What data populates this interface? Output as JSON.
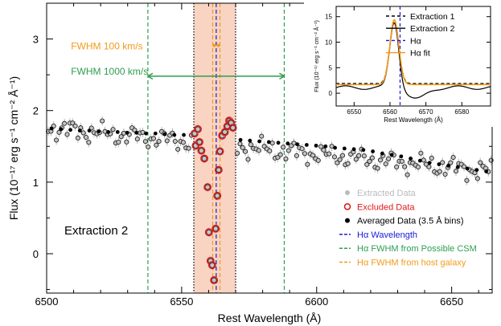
{
  "chart_data": {
    "type": "scatter",
    "main": {
      "xlabel": "Rest Wavelength (Å)",
      "ylabel": "Flux (10⁻¹⁷ erg s⁻¹ cm⁻² Å⁻¹)",
      "xlim": [
        6500,
        6665
      ],
      "ylim": [
        -0.55,
        3.5
      ],
      "xticks": [
        6500,
        6550,
        6600,
        6650
      ],
      "yticks": [
        0,
        1,
        2,
        3
      ],
      "panel_label": "Extraction 2",
      "shaded_region": {
        "x0": 6554.5,
        "x1": 6570,
        "color": "#f7c5ad"
      },
      "vlines": [
        {
          "x": 6537.5,
          "color": "#2e9e4f",
          "style": "dashed"
        },
        {
          "x": 6588.0,
          "color": "#2e9e4f",
          "style": "dashed"
        },
        {
          "x": 6562.8,
          "color": "#1a1ad6",
          "style": "dashed"
        },
        {
          "x": 6561.5,
          "color": "#f39a1a",
          "style": "dashed"
        },
        {
          "x": 6564.2,
          "color": "#f39a1a",
          "style": "dashed"
        },
        {
          "x": 6554.5,
          "color": "#000000",
          "style": "dotted"
        },
        {
          "x": 6570.0,
          "color": "#000000",
          "style": "dotted"
        }
      ],
      "annotations": [
        {
          "text": "FWHM 100 km/s",
          "color": "#f39a1a",
          "x": 6509,
          "y": 2.91,
          "arrow": [
            6561.5,
            6564.2,
            2.91
          ]
        },
        {
          "text": "FWHM 1000 km/s",
          "color": "#2e9e4f",
          "x": 6509,
          "y": 2.56,
          "arrow": [
            6537.5,
            6588.0,
            2.48
          ]
        }
      ],
      "excluded_points": [
        {
          "x": 6554.8,
          "y": 1.68
        },
        {
          "x": 6555.2,
          "y": 1.51
        },
        {
          "x": 6556.0,
          "y": 1.74
        },
        {
          "x": 6556.6,
          "y": 1.56
        },
        {
          "x": 6557.3,
          "y": 1.44
        },
        {
          "x": 6558.4,
          "y": 1.33
        },
        {
          "x": 6559.6,
          "y": 0.93
        },
        {
          "x": 6560.1,
          "y": 0.3
        },
        {
          "x": 6560.7,
          "y": -0.1
        },
        {
          "x": 6561.3,
          "y": -0.16
        },
        {
          "x": 6562.0,
          "y": -0.37
        },
        {
          "x": 6562.6,
          "y": 0.35
        },
        {
          "x": 6563.2,
          "y": 0.81
        },
        {
          "x": 6563.7,
          "y": 1.17
        },
        {
          "x": 6564.2,
          "y": 1.43
        },
        {
          "x": 6565.0,
          "y": 1.65
        },
        {
          "x": 6566.0,
          "y": 1.7
        },
        {
          "x": 6566.9,
          "y": 1.78
        },
        {
          "x": 6567.6,
          "y": 1.86
        },
        {
          "x": 6568.3,
          "y": 1.83
        },
        {
          "x": 6569.0,
          "y": 1.76
        }
      ],
      "averaged_data": {
        "bin_width": 3.5,
        "x": [
          6501.8,
          6505.3,
          6508.8,
          6512.3,
          6515.8,
          6519.3,
          6522.8,
          6526.3,
          6529.8,
          6533.3,
          6536.8,
          6540.3,
          6543.8,
          6547.3,
          6550.8,
          6571.8,
          6575.3,
          6578.8,
          6582.3,
          6585.8,
          6589.3,
          6592.8,
          6596.3,
          6599.8,
          6603.3,
          6606.8,
          6610.3,
          6613.8,
          6617.3,
          6620.8,
          6624.3,
          6627.8,
          6631.3,
          6634.8,
          6638.3,
          6641.8,
          6645.3,
          6648.8,
          6652.3,
          6655.8,
          6659.3,
          6662.8
        ],
        "y": [
          1.75,
          1.74,
          1.73,
          1.72,
          1.72,
          1.71,
          1.7,
          1.7,
          1.69,
          1.69,
          1.68,
          1.68,
          1.67,
          1.66,
          1.66,
          1.59,
          1.58,
          1.57,
          1.56,
          1.55,
          1.54,
          1.53,
          1.52,
          1.51,
          1.5,
          1.48,
          1.47,
          1.46,
          1.45,
          1.43,
          1.4,
          1.38,
          1.36,
          1.33,
          1.3,
          1.27,
          1.25,
          1.23,
          1.21,
          1.19,
          1.17,
          1.15
        ]
      },
      "extracted_trend": {
        "x0": 6500,
        "x1": 6665,
        "y0": 1.76,
        "y1": 1.15,
        "wiggle_amplitude": 0.13,
        "spacing": 1.0
      }
    },
    "legend": {
      "position": "bottom-right",
      "entries": [
        {
          "label": "Extracted Data",
          "marker": "filled-circle",
          "color": "#bbbbbb"
        },
        {
          "label": "Excluded Data",
          "marker": "open-circle",
          "color": "#e01a1a"
        },
        {
          "label": "Averaged Data (3.5 Å bins)",
          "marker": "filled-circle",
          "color": "#000000"
        },
        {
          "label": "Hα Wavelength",
          "marker": "dash",
          "color": "#1a1ad6"
        },
        {
          "label": "Hα FWHM from Possible CSM",
          "marker": "dash",
          "color": "#2e9e4f"
        },
        {
          "label": "Hα FWHM from host galaxy",
          "marker": "dash",
          "color": "#f39a1a"
        }
      ]
    },
    "inset": {
      "type": "line",
      "xlabel": "Rest Wavelength (Å)",
      "ylabel": "Flux (10⁻¹⁷ erg s⁻¹ cm⁻² Å⁻¹)",
      "xlim": [
        6545,
        6588
      ],
      "ylim": [
        -2.5,
        17
      ],
      "xticks": [
        6550,
        6560,
        6570,
        6580
      ],
      "yticks": [
        0,
        5,
        10,
        15
      ],
      "halpha_x": 6562.8,
      "legend_position": "top-right",
      "series": [
        {
          "name": "Extraction 1",
          "color": "#000000",
          "style": "dashed",
          "continuum": 1.9,
          "peak": 14.3,
          "center": 6561.2,
          "sigma": 1.25
        },
        {
          "name": "Extraction 2",
          "color": "#000000",
          "style": "solid",
          "continuum": 1.1,
          "peak": 14.0,
          "center": 6561.2,
          "sigma": 1.25,
          "trough": -1.2
        },
        {
          "name": "Hα",
          "color": "#1a1ad6",
          "style": "dashed"
        },
        {
          "name": "Hα fit",
          "color": "#f39a1a",
          "style": "solid",
          "continuum": 1.7,
          "peak": 14.4,
          "center": 6561.2,
          "sigma": 1.25
        }
      ]
    }
  }
}
